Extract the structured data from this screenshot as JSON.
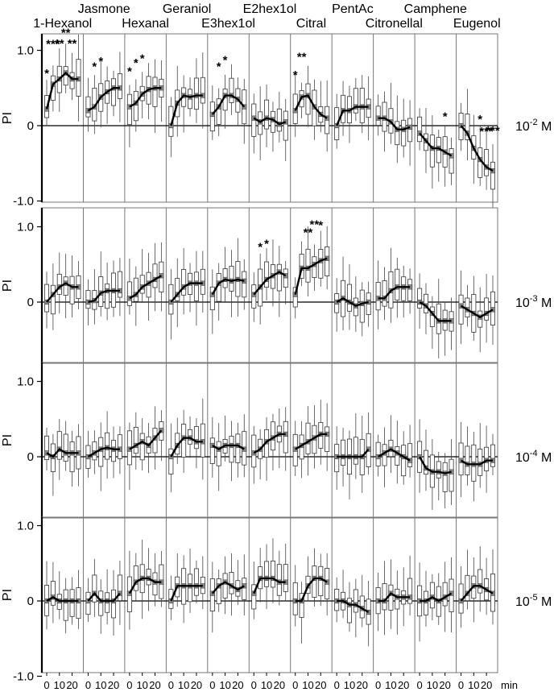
{
  "figure": {
    "header_top": [
      "Jasmone",
      "Geraniol",
      "E2hex1ol",
      "PentAc",
      "Camphene"
    ],
    "header_bottom": [
      "1-Hexanol",
      "Hexanal",
      "E3hex1ol",
      "Citral",
      "Citronellal",
      "Eugenol"
    ],
    "y_axis_label": "PI",
    "x_unit": "min"
  },
  "chart_data": [
    {
      "type": "box",
      "panel": "10^-2 M",
      "concentration": "10-2 M",
      "ylim": [
        -1.0,
        1.2
      ],
      "yticks": [
        "1.0",
        "0",
        "-1.0"
      ],
      "odors": [
        "1-Hexanol",
        "Jasmone",
        "Hexanal",
        "Geraniol",
        "E3hex1ol",
        "E2hex1ol",
        "Citral",
        "PentAc",
        "Citronellal",
        "Camphene",
        "Eugenol"
      ],
      "x": [
        0,
        5,
        10,
        15,
        20,
        25
      ],
      "median_series": [
        [
          0.22,
          0.55,
          0.62,
          0.7,
          0.62,
          0.62
        ],
        [
          0.2,
          0.25,
          0.38,
          0.45,
          0.5,
          0.5
        ],
        [
          0.25,
          0.3,
          0.42,
          0.48,
          0.5,
          0.5
        ],
        [
          0.0,
          0.3,
          0.4,
          0.38,
          0.4,
          0.4
        ],
        [
          0.15,
          0.25,
          0.4,
          0.4,
          0.35,
          0.25
        ],
        [
          0.1,
          0.05,
          0.1,
          0.08,
          0.02,
          0.05
        ],
        [
          0.2,
          0.38,
          0.4,
          0.25,
          0.15,
          0.1
        ],
        [
          0.0,
          0.2,
          0.2,
          0.25,
          0.25,
          0.25
        ],
        [
          0.1,
          0.1,
          0.05,
          -0.05,
          -0.05,
          -0.02
        ],
        [
          -0.1,
          -0.2,
          -0.3,
          -0.3,
          -0.35,
          -0.4
        ],
        [
          0.0,
          -0.1,
          -0.3,
          -0.45,
          -0.55,
          -0.6
        ]
      ],
      "significance": [
        [
          "*",
          "***",
          "**",
          "**",
          "**",
          ""
        ],
        [
          "",
          "*",
          "*",
          "",
          "",
          ""
        ],
        [
          "*",
          "*",
          "*",
          "",
          "",
          ""
        ],
        [
          "",
          "",
          "",
          "",
          "",
          ""
        ],
        [
          "",
          "*",
          "*",
          "",
          "",
          ""
        ],
        [
          "",
          "",
          "",
          "",
          "",
          ""
        ],
        [
          "*",
          "**",
          "",
          "",
          "",
          ""
        ],
        [
          "",
          "",
          "",
          "",
          "",
          ""
        ],
        [
          "",
          "",
          "",
          "",
          "",
          ""
        ],
        [
          "",
          "",
          "",
          "",
          "*",
          ""
        ],
        [
          "",
          "",
          "",
          "*",
          "***",
          "***"
        ]
      ]
    },
    {
      "type": "box",
      "panel": "10^-3 M",
      "concentration": "10-3 M",
      "ylim": [
        -1.0,
        1.2
      ],
      "yticks": [
        "1.0",
        "0"
      ],
      "odors": [
        "1-Hexanol",
        "Jasmone",
        "Hexanal",
        "Geraniol",
        "E3hex1ol",
        "E2hex1ol",
        "Citral",
        "PentAc",
        "Citronellal",
        "Camphene",
        "Eugenol"
      ],
      "x": [
        0,
        5,
        10,
        15,
        20,
        25
      ],
      "median_series": [
        [
          0.0,
          0.1,
          0.2,
          0.25,
          0.2,
          0.2
        ],
        [
          0.0,
          0.02,
          0.12,
          0.15,
          0.15,
          0.15
        ],
        [
          0.05,
          0.1,
          0.2,
          0.25,
          0.3,
          0.35
        ],
        [
          0.0,
          0.1,
          0.2,
          0.25,
          0.25,
          0.25
        ],
        [
          0.1,
          0.25,
          0.3,
          0.28,
          0.3,
          0.28
        ],
        [
          0.1,
          0.2,
          0.3,
          0.35,
          0.4,
          0.35
        ],
        [
          0.1,
          0.45,
          0.45,
          0.5,
          0.55,
          0.58
        ],
        [
          0.0,
          0.05,
          0.0,
          -0.05,
          -0.02,
          0.0
        ],
        [
          0.05,
          0.05,
          0.15,
          0.2,
          0.2,
          0.2
        ],
        [
          0.0,
          -0.05,
          -0.15,
          -0.25,
          -0.25,
          -0.25
        ],
        [
          -0.05,
          -0.1,
          -0.15,
          -0.2,
          -0.15,
          -0.1
        ]
      ],
      "significance": [
        [
          "",
          "",
          "",
          "",
          "",
          ""
        ],
        [
          "",
          "",
          "",
          "",
          "",
          ""
        ],
        [
          "",
          "",
          "",
          "",
          "",
          ""
        ],
        [
          "",
          "",
          "",
          "",
          "",
          ""
        ],
        [
          "",
          "",
          "",
          "",
          "",
          ""
        ],
        [
          "",
          "*",
          "*",
          "",
          "",
          ""
        ],
        [
          "",
          "",
          "**",
          "**",
          "*",
          ""
        ],
        [
          "",
          "",
          "",
          "",
          "",
          ""
        ],
        [
          "",
          "",
          "",
          "",
          "",
          ""
        ],
        [
          "",
          "",
          "",
          "",
          "",
          ""
        ],
        [
          "",
          "",
          "",
          "",
          "",
          ""
        ]
      ]
    },
    {
      "type": "box",
      "panel": "10^-4 M",
      "concentration": "10-4 M",
      "ylim": [
        -1.0,
        1.2
      ],
      "yticks": [
        "1.0",
        "0"
      ],
      "odors": [
        "1-Hexanol",
        "Jasmone",
        "Hexanal",
        "Geraniol",
        "E3hex1ol",
        "E2hex1ol",
        "Citral",
        "PentAc",
        "Citronellal",
        "Camphene",
        "Eugenol"
      ],
      "x": [
        0,
        5,
        10,
        15,
        20,
        25
      ],
      "median_series": [
        [
          0.05,
          0.0,
          0.1,
          0.05,
          0.05,
          0.05
        ],
        [
          0.0,
          0.05,
          0.1,
          0.12,
          0.1,
          0.1
        ],
        [
          0.1,
          0.15,
          0.2,
          0.15,
          0.25,
          0.35
        ],
        [
          0.0,
          0.15,
          0.25,
          0.25,
          0.2,
          0.2
        ],
        [
          0.15,
          0.1,
          0.15,
          0.15,
          0.15,
          0.1
        ],
        [
          0.05,
          0.1,
          0.2,
          0.25,
          0.3,
          0.3
        ],
        [
          0.1,
          0.15,
          0.2,
          0.25,
          0.3,
          0.3
        ],
        [
          0.0,
          0.0,
          0.0,
          0.0,
          0.0,
          0.1
        ],
        [
          0.0,
          0.05,
          0.1,
          0.05,
          0.0,
          -0.05
        ],
        [
          0.0,
          -0.15,
          -0.2,
          -0.2,
          -0.22,
          -0.2
        ],
        [
          -0.05,
          -0.1,
          -0.1,
          -0.1,
          -0.05,
          -0.05
        ]
      ]
    },
    {
      "type": "box",
      "panel": "10^-5 M",
      "concentration": "10-5 M",
      "ylim": [
        -1.0,
        1.2
      ],
      "yticks": [
        "1.0",
        "0",
        "-1.0"
      ],
      "odors": [
        "1-Hexanol",
        "Jasmone",
        "Hexanal",
        "Geraniol",
        "E3hex1ol",
        "E2hex1ol",
        "Citral",
        "PentAc",
        "Citronellal",
        "Camphene",
        "Eugenol"
      ],
      "x": [
        0,
        5,
        10,
        15,
        20,
        25
      ],
      "x_tick_labels": [
        "0",
        "10",
        "20"
      ],
      "median_series": [
        [
          0.0,
          0.05,
          0.0,
          0.0,
          0.0,
          0.0
        ],
        [
          0.0,
          0.1,
          0.0,
          0.0,
          0.0,
          0.1
        ],
        [
          0.1,
          0.25,
          0.3,
          0.3,
          0.25,
          0.25
        ],
        [
          0.0,
          0.2,
          0.2,
          0.2,
          0.2,
          0.2
        ],
        [
          0.1,
          0.2,
          0.25,
          0.2,
          0.15,
          0.2
        ],
        [
          0.1,
          0.3,
          0.3,
          0.3,
          0.25,
          0.25
        ],
        [
          0.0,
          0.0,
          0.2,
          0.3,
          0.3,
          0.25
        ],
        [
          0.0,
          0.0,
          -0.05,
          -0.05,
          -0.1,
          -0.15
        ],
        [
          0.0,
          0.0,
          0.1,
          0.05,
          0.05,
          0.05
        ],
        [
          0.0,
          0.0,
          0.05,
          0.0,
          0.05,
          0.1
        ],
        [
          0.0,
          0.1,
          0.2,
          0.2,
          0.15,
          0.1
        ]
      ]
    }
  ]
}
